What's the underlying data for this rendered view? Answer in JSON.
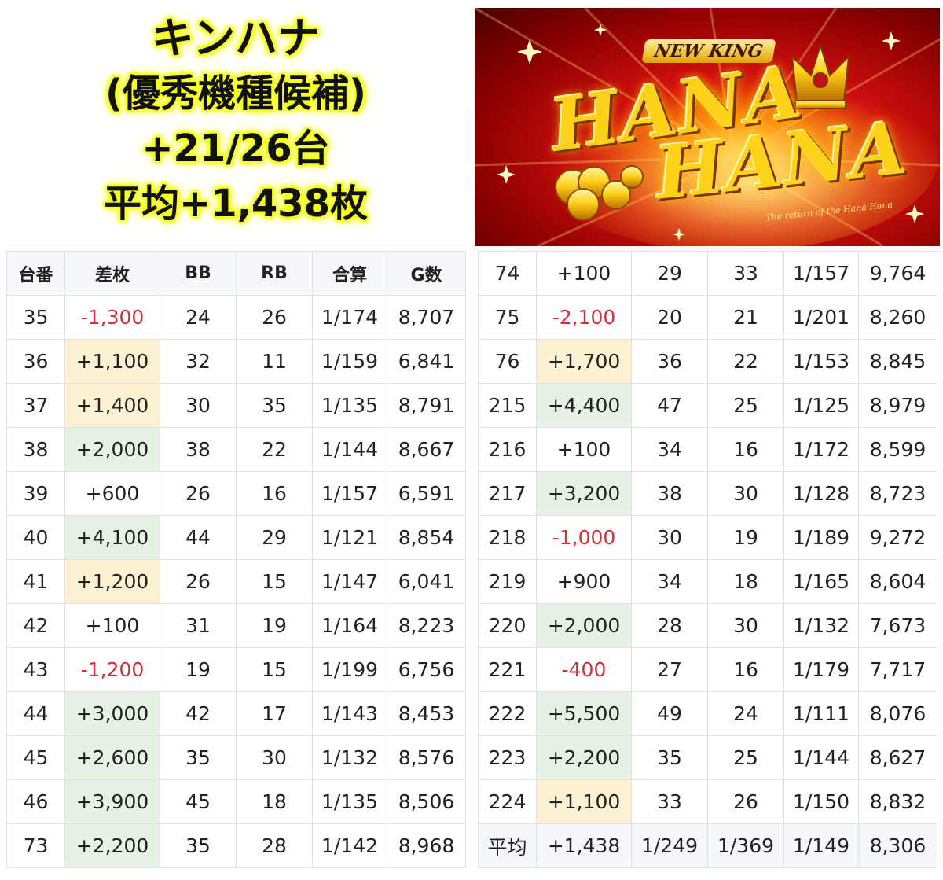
{
  "title": {
    "line1": "キンハナ",
    "line2": "(優秀機種候補)",
    "line3": "+21/26台",
    "line4": "平均+1,438枚"
  },
  "banner": {
    "top_text": "NEW KING",
    "main_text_1": "HANA",
    "main_text_2": "HANA",
    "tagline": "The return of the Hana Hana"
  },
  "colors": {
    "negative": "#d0313b",
    "highlight_green_bg": "#e6f3e4",
    "highlight_yellow_bg": "#fcf1d2",
    "header_bg": "#f5f7fa"
  },
  "table": {
    "headers": [
      "台番",
      "差枚",
      "BB",
      "RB",
      "合算",
      "G数"
    ],
    "left_rows": [
      {
        "num": "35",
        "diff": "-1,300",
        "bb": "24",
        "rb": "26",
        "combined": "1/174",
        "games": "8,707",
        "style": "neg"
      },
      {
        "num": "36",
        "diff": "+1,100",
        "bb": "32",
        "rb": "11",
        "combined": "1/159",
        "games": "6,841",
        "style": "yellow"
      },
      {
        "num": "37",
        "diff": "+1,400",
        "bb": "30",
        "rb": "35",
        "combined": "1/135",
        "games": "8,791",
        "style": "yellow"
      },
      {
        "num": "38",
        "diff": "+2,000",
        "bb": "38",
        "rb": "22",
        "combined": "1/144",
        "games": "8,667",
        "style": "green"
      },
      {
        "num": "39",
        "diff": "+600",
        "bb": "26",
        "rb": "16",
        "combined": "1/157",
        "games": "6,591",
        "style": "plain"
      },
      {
        "num": "40",
        "diff": "+4,100",
        "bb": "44",
        "rb": "29",
        "combined": "1/121",
        "games": "8,854",
        "style": "green"
      },
      {
        "num": "41",
        "diff": "+1,200",
        "bb": "26",
        "rb": "15",
        "combined": "1/147",
        "games": "6,041",
        "style": "yellow"
      },
      {
        "num": "42",
        "diff": "+100",
        "bb": "31",
        "rb": "19",
        "combined": "1/164",
        "games": "8,223",
        "style": "plain"
      },
      {
        "num": "43",
        "diff": "-1,200",
        "bb": "19",
        "rb": "15",
        "combined": "1/199",
        "games": "6,756",
        "style": "neg"
      },
      {
        "num": "44",
        "diff": "+3,000",
        "bb": "42",
        "rb": "17",
        "combined": "1/143",
        "games": "8,453",
        "style": "green"
      },
      {
        "num": "45",
        "diff": "+2,600",
        "bb": "35",
        "rb": "30",
        "combined": "1/132",
        "games": "8,576",
        "style": "green"
      },
      {
        "num": "46",
        "diff": "+3,900",
        "bb": "45",
        "rb": "18",
        "combined": "1/135",
        "games": "8,506",
        "style": "green"
      },
      {
        "num": "73",
        "diff": "+2,200",
        "bb": "35",
        "rb": "28",
        "combined": "1/142",
        "games": "8,968",
        "style": "green"
      }
    ],
    "right_rows": [
      {
        "num": "74",
        "diff": "+100",
        "bb": "29",
        "rb": "33",
        "combined": "1/157",
        "games": "9,764",
        "style": "plain"
      },
      {
        "num": "75",
        "diff": "-2,100",
        "bb": "20",
        "rb": "21",
        "combined": "1/201",
        "games": "8,260",
        "style": "neg"
      },
      {
        "num": "76",
        "diff": "+1,700",
        "bb": "36",
        "rb": "22",
        "combined": "1/153",
        "games": "8,845",
        "style": "yellow"
      },
      {
        "num": "215",
        "diff": "+4,400",
        "bb": "47",
        "rb": "25",
        "combined": "1/125",
        "games": "8,979",
        "style": "green"
      },
      {
        "num": "216",
        "diff": "+100",
        "bb": "34",
        "rb": "16",
        "combined": "1/172",
        "games": "8,599",
        "style": "plain"
      },
      {
        "num": "217",
        "diff": "+3,200",
        "bb": "38",
        "rb": "30",
        "combined": "1/128",
        "games": "8,723",
        "style": "green"
      },
      {
        "num": "218",
        "diff": "-1,000",
        "bb": "30",
        "rb": "19",
        "combined": "1/189",
        "games": "9,272",
        "style": "neg"
      },
      {
        "num": "219",
        "diff": "+900",
        "bb": "34",
        "rb": "18",
        "combined": "1/165",
        "games": "8,604",
        "style": "plain"
      },
      {
        "num": "220",
        "diff": "+2,000",
        "bb": "28",
        "rb": "30",
        "combined": "1/132",
        "games": "7,673",
        "style": "green"
      },
      {
        "num": "221",
        "diff": "-400",
        "bb": "27",
        "rb": "16",
        "combined": "1/179",
        "games": "7,717",
        "style": "neg"
      },
      {
        "num": "222",
        "diff": "+5,500",
        "bb": "49",
        "rb": "24",
        "combined": "1/111",
        "games": "8,076",
        "style": "green"
      },
      {
        "num": "223",
        "diff": "+2,200",
        "bb": "35",
        "rb": "25",
        "combined": "1/144",
        "games": "8,627",
        "style": "green"
      },
      {
        "num": "224",
        "diff": "+1,100",
        "bb": "33",
        "rb": "26",
        "combined": "1/150",
        "games": "8,832",
        "style": "yellow"
      }
    ],
    "average_row": {
      "num": "平均",
      "diff": "+1,438",
      "bb": "1/249",
      "rb": "1/369",
      "combined": "1/149",
      "games": "8,306",
      "style": "plain"
    }
  }
}
